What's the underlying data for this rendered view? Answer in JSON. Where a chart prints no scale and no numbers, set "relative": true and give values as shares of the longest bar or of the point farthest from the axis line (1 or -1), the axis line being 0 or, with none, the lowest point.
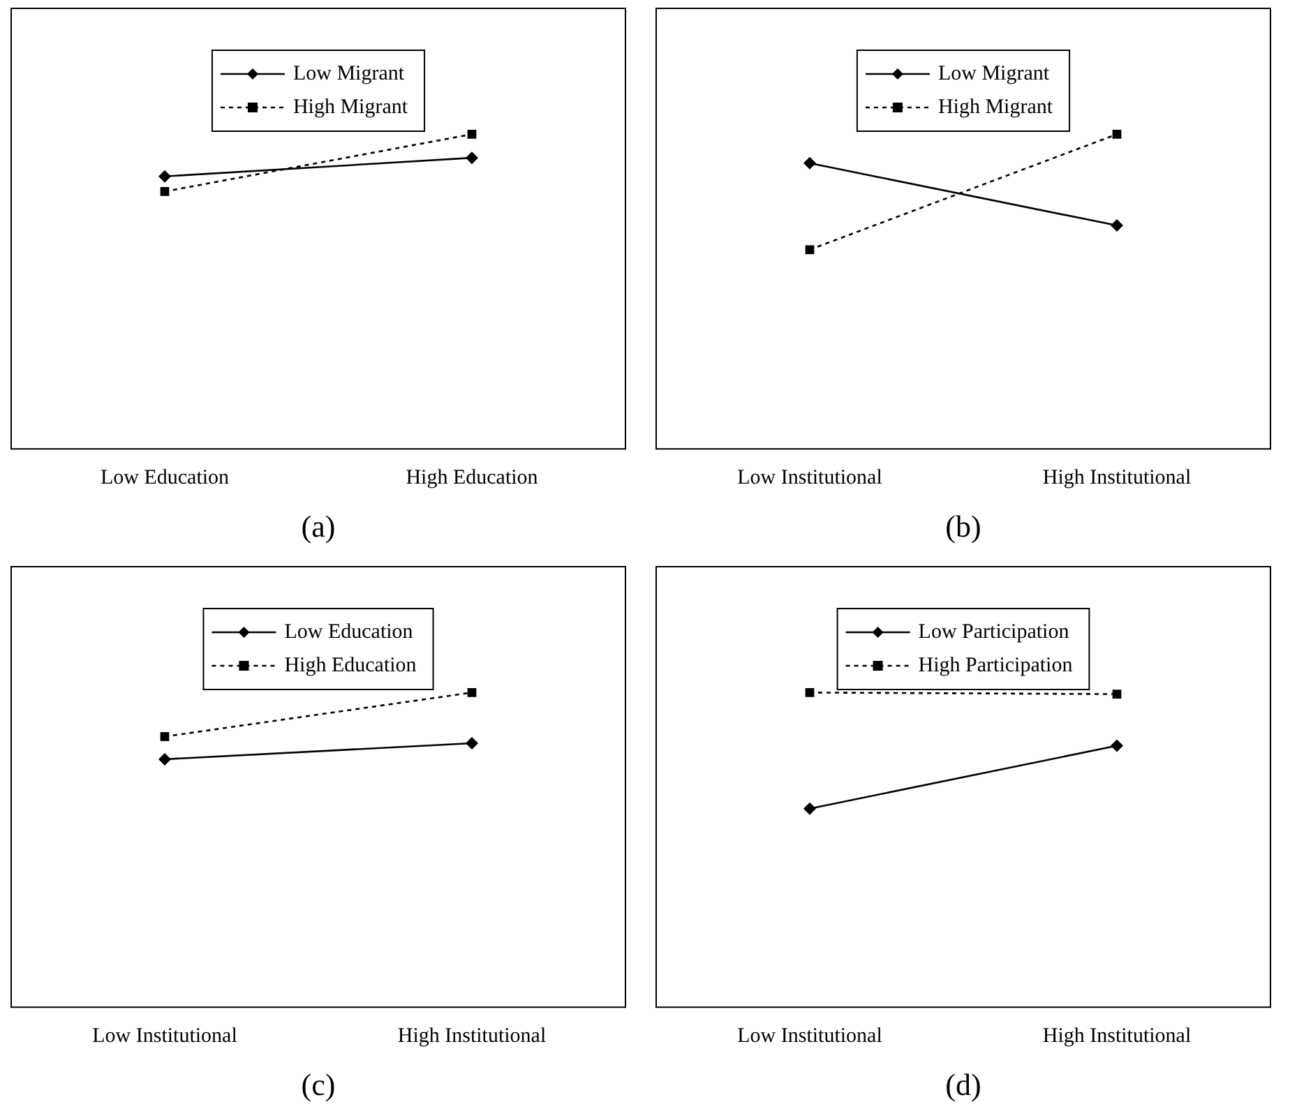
{
  "chart_data": [
    {
      "type": "line",
      "relative": true,
      "xlabel": "(a)",
      "categories": [
        "Low Education",
        "High Education"
      ],
      "legend": "top",
      "grid": false,
      "series": [
        {
          "name": "Low Migrant",
          "color": "#000000",
          "values": [
            0.866,
            0.925
          ],
          "marker": "diamond",
          "line_style": "solid"
        },
        {
          "name": "High Migrant",
          "color": "#000000",
          "values": [
            0.818,
            1
          ],
          "marker": "square",
          "line_style": "dotted"
        }
      ]
    },
    {
      "type": "line",
      "relative": true,
      "xlabel": "(b)",
      "categories": [
        "Low Institutional",
        "High Institutional"
      ],
      "legend": "top",
      "grid": false,
      "series": [
        {
          "name": "Low Migrant",
          "color": "#000000",
          "values": [
            0.908,
            0.71
          ],
          "marker": "diamond",
          "line_style": "solid"
        },
        {
          "name": "High Migrant",
          "color": "#000000",
          "values": [
            0.633,
            1
          ],
          "marker": "square",
          "line_style": "dotted"
        }
      ]
    },
    {
      "type": "line",
      "relative": true,
      "xlabel": "(c)",
      "categories": [
        "Low Institutional",
        "High Institutional"
      ],
      "legend": "top",
      "grid": false,
      "series": [
        {
          "name": "Low Education",
          "color": "#000000",
          "values": [
            0.788,
            0.839
          ],
          "marker": "diamond",
          "line_style": "solid"
        },
        {
          "name": "High Education",
          "color": "#000000",
          "values": [
            0.86,
            1
          ],
          "marker": "square",
          "line_style": "dotted"
        }
      ]
    },
    {
      "type": "line",
      "relative": true,
      "xlabel": "(d)",
      "categories": [
        "Low Institutional",
        "High Institutional"
      ],
      "legend": "top",
      "grid": false,
      "series": [
        {
          "name": "Low Participation",
          "color": "#000000",
          "values": [
            0.631,
            0.831
          ],
          "marker": "diamond",
          "line_style": "solid"
        },
        {
          "name": "High Participation",
          "color": "#000000",
          "values": [
            1,
            0.995
          ],
          "marker": "square",
          "line_style": "dotted"
        }
      ]
    }
  ]
}
